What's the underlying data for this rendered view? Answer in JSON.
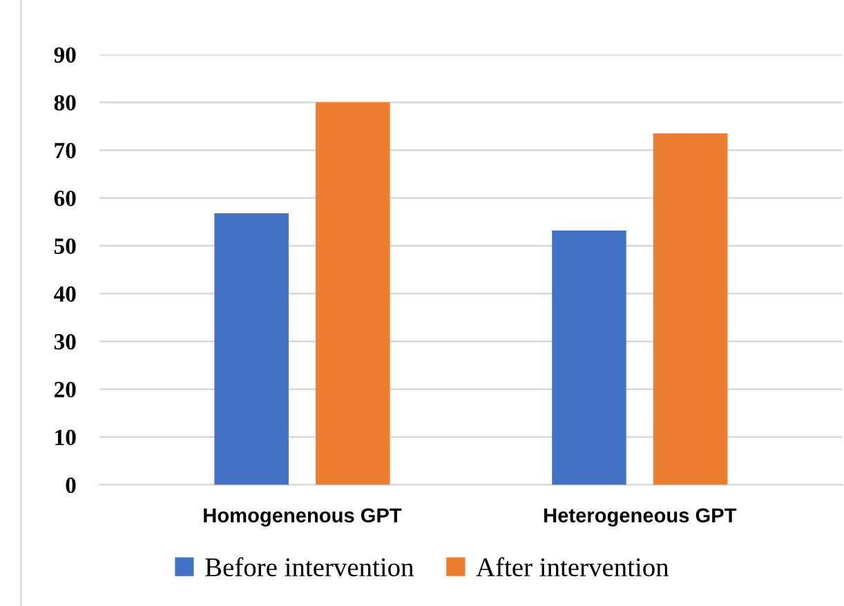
{
  "chart_data": {
    "type": "bar",
    "categories": [
      "Homogenenous GPT",
      "Heterogeneous GPT"
    ],
    "series": [
      {
        "name": "Before intervention",
        "color": "#4472c4",
        "values": [
          56.8,
          53.2
        ]
      },
      {
        "name": "After intervention",
        "color": "#ed7d31",
        "values": [
          80,
          73.5
        ]
      }
    ],
    "ylim": [
      0,
      90
    ],
    "yticks": [
      0,
      10,
      20,
      30,
      40,
      50,
      60,
      70,
      80,
      90
    ],
    "grid": "y",
    "legend": "bottom"
  }
}
